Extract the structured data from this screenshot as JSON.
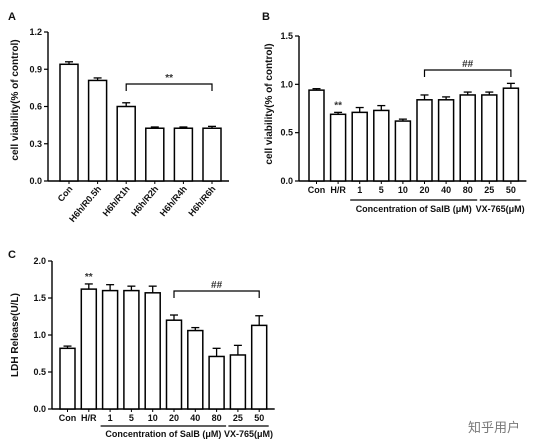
{
  "watermark": "知乎用户",
  "chart_data": [
    {
      "type": "bar",
      "panel": "A",
      "ylabel": "cell viability(% of control)",
      "ylim": [
        0,
        1.2
      ],
      "yticks": [
        "0.0",
        "0.3",
        "0.6",
        "0.9",
        "1.2"
      ],
      "categories": [
        "Con",
        "H6h/R0.5h",
        "H6h/R1h",
        "H6h/R2h",
        "H6h/R4h",
        "H6h/R6h"
      ],
      "values": [
        0.94,
        0.81,
        0.6,
        0.425,
        0.425,
        0.425
      ],
      "errors": [
        0.02,
        0.02,
        0.03,
        0.01,
        0.01,
        0.015
      ],
      "annotations": [
        {
          "text": "**",
          "from": 2,
          "to": 5
        }
      ]
    },
    {
      "type": "bar",
      "panel": "B",
      "ylabel": "cell viability(% of control)",
      "ylim": [
        0,
        1.5
      ],
      "yticks": [
        "0.0",
        "0.5",
        "1.0",
        "1.5"
      ],
      "categories": [
        "Con",
        "H/R",
        "1",
        "5",
        "10",
        "20",
        "40",
        "80",
        "25",
        "50"
      ],
      "values": [
        0.94,
        0.69,
        0.71,
        0.73,
        0.62,
        0.84,
        0.84,
        0.89,
        0.89,
        0.96
      ],
      "errors": [
        0.015,
        0.02,
        0.05,
        0.05,
        0.02,
        0.05,
        0.03,
        0.03,
        0.03,
        0.05
      ],
      "markers": [
        {
          "index": 1,
          "text": "**"
        }
      ],
      "annotations": [
        {
          "text": "##",
          "from": 5,
          "to": 9
        }
      ],
      "groups": [
        {
          "label": "Concentration of SalB (μM)",
          "from": 2,
          "to": 7
        },
        {
          "label": "VX-765(μM)",
          "from": 8,
          "to": 9
        }
      ]
    },
    {
      "type": "bar",
      "panel": "C",
      "ylabel": "LDH Release(U/L)",
      "ylim": [
        0,
        2.0
      ],
      "yticks": [
        "0.0",
        "0.5",
        "1.0",
        "1.5",
        "2.0"
      ],
      "categories": [
        "Con",
        "H/R",
        "1",
        "5",
        "10",
        "20",
        "40",
        "80",
        "25",
        "50"
      ],
      "values": [
        0.82,
        1.62,
        1.6,
        1.6,
        1.57,
        1.2,
        1.06,
        0.71,
        0.73,
        1.13
      ],
      "errors": [
        0.03,
        0.07,
        0.08,
        0.06,
        0.09,
        0.07,
        0.04,
        0.11,
        0.13,
        0.13
      ],
      "markers": [
        {
          "index": 1,
          "text": "**"
        }
      ],
      "annotations": [
        {
          "text": "##",
          "from": 5,
          "to": 9
        }
      ],
      "groups": [
        {
          "label": "Concentration of SalB (μM)",
          "from": 2,
          "to": 7
        },
        {
          "label": "VX-765(μM)",
          "from": 8,
          "to": 9
        }
      ]
    }
  ]
}
